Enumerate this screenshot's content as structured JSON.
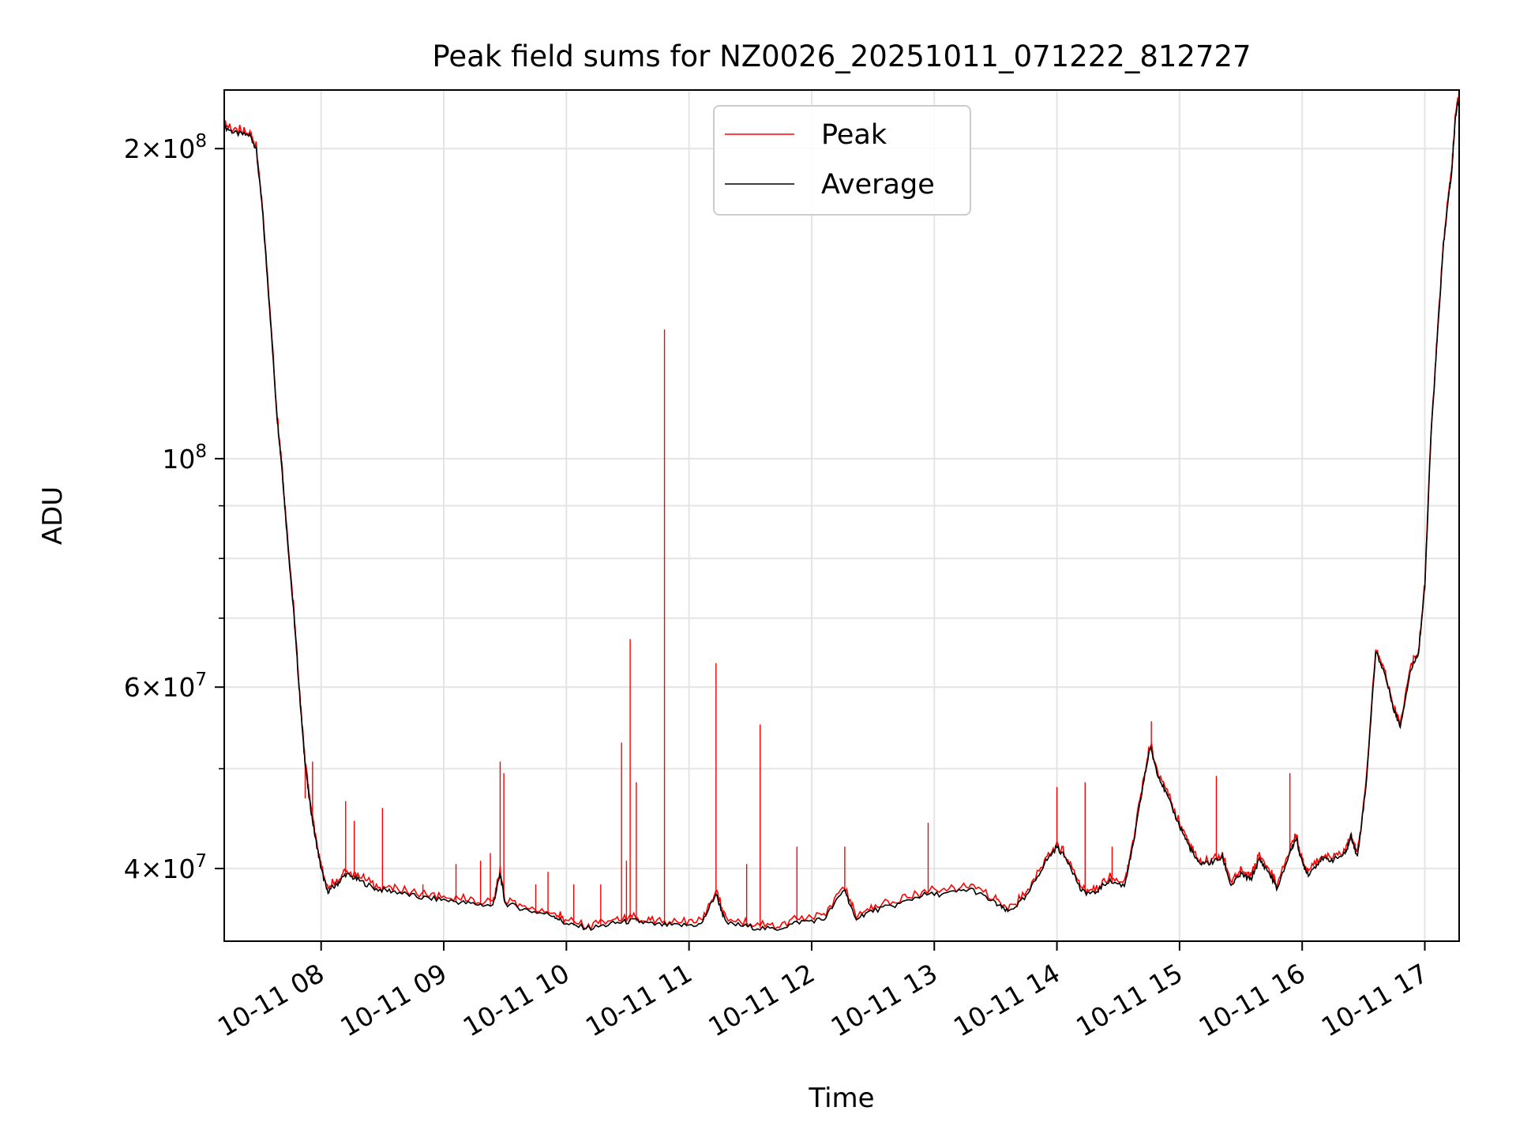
{
  "chart_data": {
    "type": "line",
    "title": "Peak field sums for NZ0026_20251011_071222_812727",
    "xlabel": "Time",
    "ylabel": "ADU",
    "yscale": "log",
    "grid": true,
    "legend_position": "top-center",
    "xlim": [
      7.21,
      17.28
    ],
    "ylim": [
      34000000,
      228000000
    ],
    "x_ticks": [
      {
        "value": 8,
        "label": "10-11 08"
      },
      {
        "value": 9,
        "label": "10-11 09"
      },
      {
        "value": 10,
        "label": "10-11 10"
      },
      {
        "value": 11,
        "label": "10-11 11"
      },
      {
        "value": 12,
        "label": "10-11 12"
      },
      {
        "value": 13,
        "label": "10-11 13"
      },
      {
        "value": 14,
        "label": "10-11 14"
      },
      {
        "value": 15,
        "label": "10-11 15"
      },
      {
        "value": 16,
        "label": "10-11 16"
      },
      {
        "value": 17,
        "label": "10-11 17"
      }
    ],
    "y_ticks": [
      {
        "value": 40000000,
        "base": "4×10",
        "exp": "7"
      },
      {
        "value": 60000000,
        "base": "6×10",
        "exp": "7"
      },
      {
        "value": 100000000,
        "base": "10",
        "exp": "8"
      },
      {
        "value": 200000000,
        "base": "2×10",
        "exp": "8"
      }
    ],
    "y_minor_ticks": [
      50000000,
      70000000,
      80000000,
      90000000
    ],
    "series": [
      {
        "name": "Average",
        "color": "#000000",
        "points": [
          [
            7.21,
            210000000
          ],
          [
            7.3,
            207000000
          ],
          [
            7.42,
            206000000
          ],
          [
            7.47,
            200000000
          ],
          [
            7.52,
            175000000
          ],
          [
            7.58,
            140000000
          ],
          [
            7.64,
            110000000
          ],
          [
            7.68,
            98000000
          ],
          [
            7.72,
            85000000
          ],
          [
            7.78,
            70000000
          ],
          [
            7.82,
            60000000
          ],
          [
            7.86,
            52000000
          ],
          [
            7.9,
            47000000
          ],
          [
            7.95,
            43000000
          ],
          [
            8.0,
            40000000
          ],
          [
            8.05,
            38000000
          ],
          [
            8.12,
            38500000
          ],
          [
            8.2,
            39500000
          ],
          [
            8.3,
            39000000
          ],
          [
            8.45,
            38200000
          ],
          [
            8.6,
            38000000
          ],
          [
            8.8,
            37500000
          ],
          [
            9.0,
            37300000
          ],
          [
            9.2,
            37000000
          ],
          [
            9.4,
            36800000
          ],
          [
            9.46,
            39500000
          ],
          [
            9.5,
            37000000
          ],
          [
            9.7,
            36400000
          ],
          [
            9.9,
            36000000
          ],
          [
            10.0,
            35300000
          ],
          [
            10.2,
            35000000
          ],
          [
            10.4,
            35400000
          ],
          [
            10.55,
            35600000
          ],
          [
            10.7,
            35300000
          ],
          [
            10.9,
            35200000
          ],
          [
            11.1,
            35300000
          ],
          [
            11.22,
            37800000
          ],
          [
            11.3,
            35400000
          ],
          [
            11.5,
            35100000
          ],
          [
            11.7,
            34900000
          ],
          [
            11.9,
            35500000
          ],
          [
            12.1,
            35700000
          ],
          [
            12.27,
            38200000
          ],
          [
            12.35,
            35800000
          ],
          [
            12.5,
            36400000
          ],
          [
            12.7,
            36900000
          ],
          [
            12.9,
            37700000
          ],
          [
            13.1,
            37800000
          ],
          [
            13.3,
            38200000
          ],
          [
            13.5,
            37000000
          ],
          [
            13.6,
            36300000
          ],
          [
            13.75,
            37500000
          ],
          [
            13.9,
            40500000
          ],
          [
            14.0,
            42000000
          ],
          [
            14.1,
            40500000
          ],
          [
            14.2,
            38000000
          ],
          [
            14.3,
            37800000
          ],
          [
            14.42,
            38900000
          ],
          [
            14.55,
            38500000
          ],
          [
            14.62,
            42000000
          ],
          [
            14.7,
            48000000
          ],
          [
            14.76,
            52500000
          ],
          [
            14.82,
            49500000
          ],
          [
            14.9,
            47000000
          ],
          [
            15.0,
            44000000
          ],
          [
            15.08,
            42000000
          ],
          [
            15.15,
            40500000
          ],
          [
            15.25,
            40500000
          ],
          [
            15.35,
            41000000
          ],
          [
            15.42,
            38500000
          ],
          [
            15.5,
            39500000
          ],
          [
            15.58,
            39000000
          ],
          [
            15.65,
            40800000
          ],
          [
            15.72,
            39800000
          ],
          [
            15.8,
            38200000
          ],
          [
            15.9,
            41500000
          ],
          [
            15.95,
            42800000
          ],
          [
            16.0,
            40500000
          ],
          [
            16.05,
            39500000
          ],
          [
            16.15,
            40800000
          ],
          [
            16.25,
            40800000
          ],
          [
            16.35,
            41300000
          ],
          [
            16.4,
            43000000
          ],
          [
            16.45,
            41000000
          ],
          [
            16.52,
            48000000
          ],
          [
            16.6,
            65000000
          ],
          [
            16.67,
            62000000
          ],
          [
            16.75,
            57000000
          ],
          [
            16.8,
            55000000
          ],
          [
            16.88,
            62000000
          ],
          [
            16.95,
            65000000
          ],
          [
            17.0,
            75000000
          ],
          [
            17.05,
            105000000
          ],
          [
            17.1,
            130000000
          ],
          [
            17.15,
            160000000
          ],
          [
            17.19,
            178000000
          ],
          [
            17.22,
            190000000
          ],
          [
            17.25,
            215000000
          ],
          [
            17.28,
            225000000
          ]
        ]
      },
      {
        "name": "Peak",
        "color": "#ff0000",
        "spikes": [
          [
            7.87,
            46800000
          ],
          [
            7.93,
            50800000
          ],
          [
            8.2,
            46500000
          ],
          [
            8.27,
            44500000
          ],
          [
            8.5,
            45800000
          ],
          [
            8.83,
            38600000
          ],
          [
            9.1,
            40400000
          ],
          [
            9.3,
            40700000
          ],
          [
            9.38,
            41400000
          ],
          [
            9.46,
            50800000
          ],
          [
            9.49,
            49500000
          ],
          [
            9.75,
            38600000
          ],
          [
            9.85,
            39700000
          ],
          [
            10.06,
            38600000
          ],
          [
            10.28,
            38600000
          ],
          [
            10.45,
            53000000
          ],
          [
            10.49,
            40700000
          ],
          [
            10.52,
            66800000
          ],
          [
            10.57,
            48500000
          ],
          [
            10.8,
            133500000
          ],
          [
            11.22,
            63300000
          ],
          [
            11.47,
            40400000
          ],
          [
            11.58,
            55200000
          ],
          [
            11.88,
            42000000
          ],
          [
            12.27,
            42000000
          ],
          [
            12.95,
            44300000
          ],
          [
            14.0,
            48000000
          ],
          [
            14.23,
            48500000
          ],
          [
            14.45,
            42000000
          ],
          [
            14.77,
            55600000
          ],
          [
            15.3,
            49200000
          ],
          [
            15.9,
            49500000
          ]
        ]
      }
    ]
  }
}
